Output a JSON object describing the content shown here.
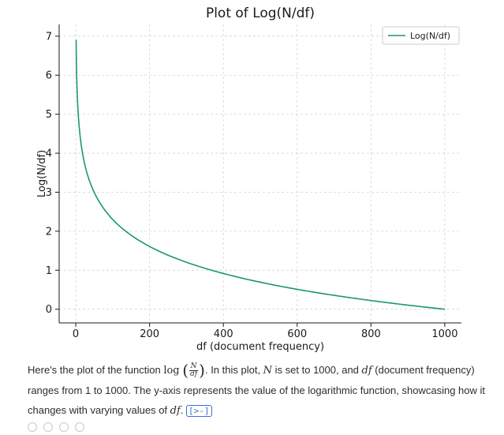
{
  "chart_data": {
    "type": "line",
    "title": "Plot of Log(N/df)",
    "xlabel": "df (document frequency)",
    "ylabel": "Log(N/df)",
    "xlim": [
      -45,
      1045
    ],
    "ylim": [
      -0.35,
      7.3
    ],
    "xticks": [
      0,
      200,
      400,
      600,
      800,
      1000
    ],
    "yticks": [
      0,
      1,
      2,
      3,
      4,
      5,
      6,
      7
    ],
    "grid": true,
    "grid_style": "dashed",
    "legend_position": "top-right",
    "series": [
      {
        "name": "Log(N/df)",
        "color": "#1a9679",
        "function": "ln(1000/x)",
        "x": [
          1,
          2,
          3,
          5,
          8,
          10,
          15,
          20,
          30,
          40,
          50,
          60,
          80,
          100,
          125,
          150,
          200,
          250,
          300,
          400,
          500,
          600,
          700,
          800,
          900,
          1000
        ],
        "y": [
          6.91,
          6.21,
          5.81,
          5.3,
          4.83,
          4.61,
          4.2,
          3.91,
          3.51,
          3.22,
          3.0,
          2.81,
          2.53,
          2.3,
          2.08,
          1.9,
          1.61,
          1.39,
          1.2,
          0.92,
          0.69,
          0.51,
          0.36,
          0.22,
          0.11,
          0.0
        ]
      }
    ]
  },
  "caption": {
    "part1": "Here's the plot of the function ",
    "func": "log",
    "frac_num": "N",
    "frac_den": "df",
    "part2": ". In this plot, ",
    "var_n": "N",
    "part3": " is set to 1000, and ",
    "var_df": "df",
    "part4": " (document frequency) ranges from 1 to 1000. The y-axis represents the value of the logarithmic function, showcasing how it changes with varying values of ",
    "var_df2": "df",
    "part5": ".",
    "code_link": "[>-]"
  }
}
